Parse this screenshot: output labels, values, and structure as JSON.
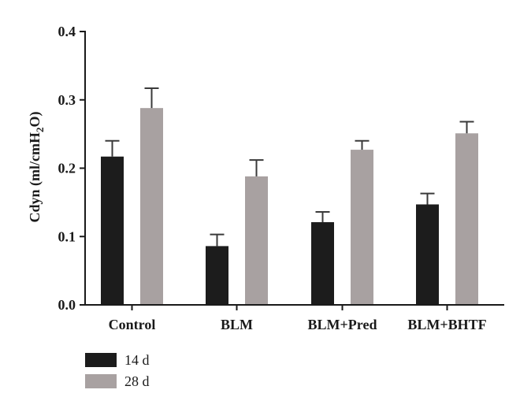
{
  "chart_data": {
    "type": "bar",
    "ylabel": "Cdyn (ml/cmH",
    "ylabel_sub": "2",
    "ylabel_end": "O)",
    "categories": [
      "Control",
      "BLM",
      "BLM+Pred",
      "BLM+BHTF"
    ],
    "ylim": [
      0,
      0.4
    ],
    "yticks": [
      "0.0",
      "0.1",
      "0.2",
      "0.3",
      "0.4"
    ],
    "ytick_values": [
      0,
      0.1,
      0.2,
      0.3,
      0.4
    ],
    "series": [
      {
        "name": "14 d",
        "color": "#1c1c1c",
        "values": [
          0.217,
          0.086,
          0.121,
          0.147
        ],
        "errors": [
          0.023,
          0.017,
          0.015,
          0.016
        ]
      },
      {
        "name": "28 d",
        "color": "#a8a1a1",
        "values": [
          0.288,
          0.188,
          0.227,
          0.251
        ],
        "errors": [
          0.029,
          0.024,
          0.013,
          0.017
        ]
      }
    ],
    "legend_position": "bottom-left",
    "grid": false
  }
}
